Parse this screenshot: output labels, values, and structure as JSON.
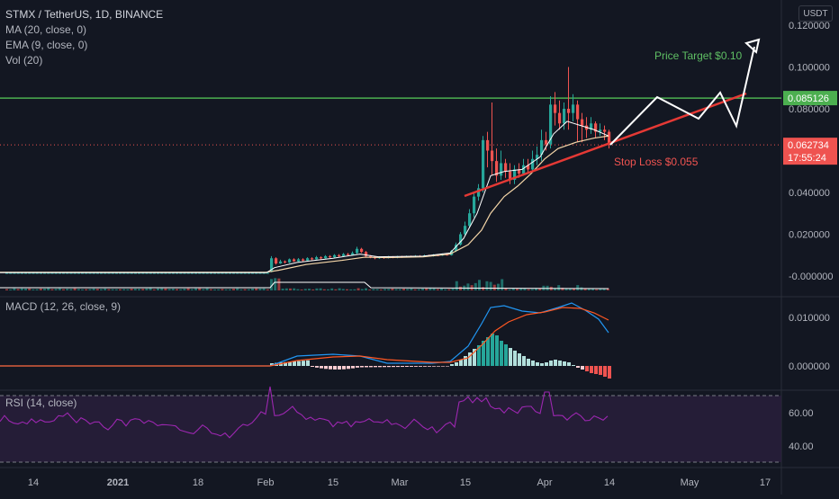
{
  "legend": {
    "title": "STMX / TetherUS, 1D, BINANCE",
    "ma": "MA (20, close, 0)",
    "ema": "EMA (9, close, 0)",
    "vol": "Vol (20)",
    "macd": "MACD (12, 26, close, 9)",
    "rsi": "RSI (14, close)"
  },
  "currency": "USDT",
  "colors": {
    "background": "#131722",
    "up": "#26a69a",
    "down": "#ef5350",
    "green_line": "#4caf50",
    "trend_red": "#e53935",
    "white": "#ffffff",
    "rsi_line": "#9c27b0",
    "rsi_band": "#2a1f3d"
  },
  "badges": {
    "resistance": "0.085126",
    "last_price": "0.062734",
    "countdown": "17:55:24"
  },
  "annotations": {
    "target": "Price Target $0.10",
    "stop": "Stop Loss $0.055"
  },
  "chart_data": [
    {
      "type": "candlestick",
      "title": "STMX / TetherUS, 1D, BINANCE",
      "y_ticks": [
        "0.120000",
        "0.100000",
        "0.080000",
        "0.060000",
        "0.040000",
        "0.020000",
        "-0.000000"
      ],
      "ylim": [
        -0.003,
        0.122
      ],
      "x_ticks": [
        "14",
        "2021",
        "18",
        "Feb",
        "15",
        "Mar",
        "15",
        "Apr",
        "14",
        "May",
        "17"
      ],
      "resistance_level": 0.085126,
      "last_price": 0.062734,
      "ma20_approx": [
        0.0018,
        0.0018,
        0.0025,
        0.0055,
        0.0065,
        0.0075,
        0.009,
        0.0095,
        0.0085,
        0.009,
        0.0095,
        0.011,
        0.02,
        0.038,
        0.048,
        0.053,
        0.058,
        0.062,
        0.064
      ]
    },
    {
      "type": "bar",
      "title": "MACD (12, 26, close, 9)",
      "y_ticks": [
        "0.010000",
        "0.000000"
      ]
    },
    {
      "type": "line",
      "title": "RSI (14, close)",
      "y_ticks": [
        "60.00",
        "40.00"
      ],
      "bands": [
        70,
        30
      ]
    }
  ]
}
